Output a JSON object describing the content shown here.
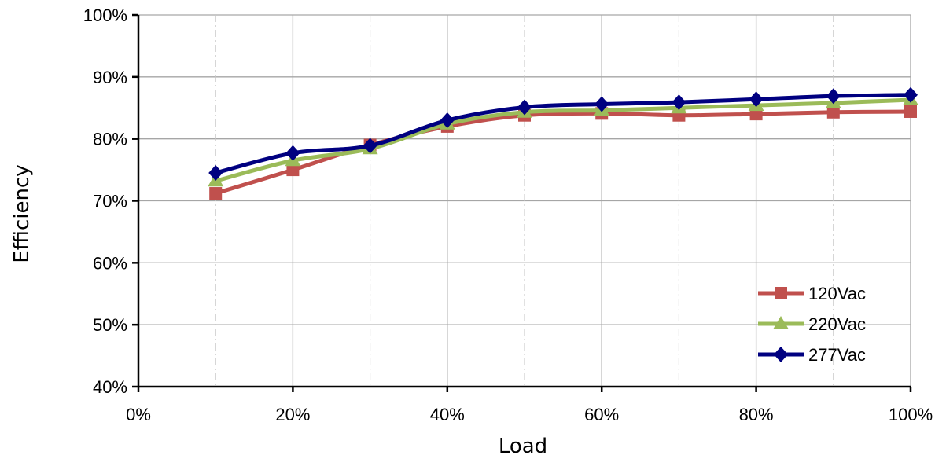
{
  "chart_data": {
    "type": "line",
    "title": "",
    "xlabel": "Load",
    "ylabel": "Efficiency",
    "x": [
      10,
      20,
      30,
      40,
      50,
      60,
      70,
      80,
      90,
      100
    ],
    "xlim": [
      0,
      100
    ],
    "ylim": [
      40,
      100
    ],
    "x_ticks": [
      0,
      20,
      40,
      60,
      80,
      100
    ],
    "x_tick_labels": [
      "0%",
      "20%",
      "40%",
      "60%",
      "80%",
      "100%"
    ],
    "y_ticks": [
      40,
      50,
      60,
      70,
      80,
      90,
      100
    ],
    "y_tick_labels": [
      "40%",
      "50%",
      "60%",
      "70%",
      "80%",
      "90%",
      "100%"
    ],
    "grid": true,
    "legend_position": "bottom-right",
    "series": [
      {
        "name": "120Vac",
        "color": "#c0504d",
        "marker": "square",
        "values": [
          71.2,
          75.0,
          79.0,
          82.0,
          83.8,
          84.1,
          83.8,
          84.0,
          84.3,
          84.4
        ]
      },
      {
        "name": "220Vac",
        "color": "#9bbb59",
        "marker": "triangle",
        "values": [
          73.2,
          76.5,
          78.4,
          82.4,
          84.3,
          84.6,
          85.0,
          85.4,
          85.8,
          86.3
        ]
      },
      {
        "name": "277Vac",
        "color": "#000080",
        "marker": "diamond",
        "values": [
          74.5,
          77.7,
          78.9,
          83.0,
          85.1,
          85.6,
          85.9,
          86.4,
          86.9,
          87.1
        ]
      }
    ]
  }
}
